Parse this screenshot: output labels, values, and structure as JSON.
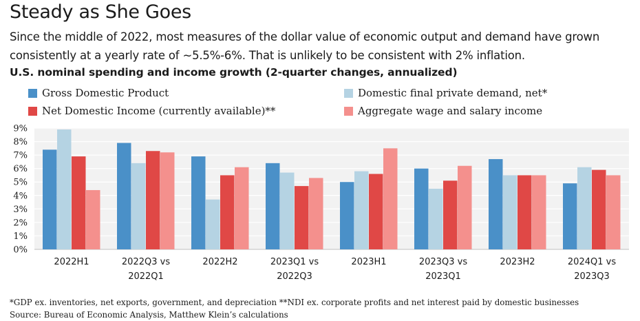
{
  "header": {
    "title": "Steady as She Goes",
    "subtitle": "Since the middle of 2022, most measures of the dollar value of economic output and demand have grown consistently at a yearly rate of ~5.5%-6%. That is unlikely to be consistent with 2% inflation.",
    "chart_heading": "U.S. nominal spending and income growth (2-quarter changes, annualized)"
  },
  "footnotes": {
    "line1": "*GDP ex. inventories, net exports, government, and depreciation   **NDI ex. corporate profits and net interest paid by domestic businesses",
    "line2": "Source: Bureau of Economic Analysis, Matthew Klein’s calculations"
  },
  "chart_data": {
    "type": "bar",
    "categories": [
      [
        "2022H1"
      ],
      [
        "2022Q3 vs",
        "2022Q1"
      ],
      [
        "2022H2"
      ],
      [
        "2023Q1 vs",
        "2022Q3"
      ],
      [
        "2023H1"
      ],
      [
        "2023Q3 vs",
        "2023Q1"
      ],
      [
        "2023H2"
      ],
      [
        "2024Q1 vs",
        "2023Q3"
      ]
    ],
    "series": [
      {
        "name": "Gross Domestic Product",
        "color": "#4a90c8",
        "values": [
          7.4,
          7.9,
          6.9,
          6.4,
          5.0,
          6.0,
          6.7,
          4.9
        ]
      },
      {
        "name": "Domestic final private demand, net*",
        "color": "#b5d3e3",
        "values": [
          8.9,
          6.4,
          3.7,
          5.7,
          5.8,
          4.5,
          5.5,
          6.1
        ]
      },
      {
        "name": "Net Domestic Income (currently available)**",
        "color": "#e04846",
        "values": [
          6.9,
          7.3,
          5.5,
          4.7,
          5.6,
          5.1,
          5.5,
          5.9
        ]
      },
      {
        "name": "Aggregate wage and salary income",
        "color": "#f4908d",
        "values": [
          4.4,
          7.2,
          6.1,
          5.3,
          7.5,
          6.2,
          5.5,
          5.5
        ]
      }
    ],
    "y_ticks": [
      "0%",
      "1%",
      "2%",
      "3%",
      "4%",
      "5%",
      "6%",
      "7%",
      "8%",
      "9%"
    ],
    "ylim": [
      0,
      9
    ],
    "grid": true,
    "legend_position": "top"
  }
}
